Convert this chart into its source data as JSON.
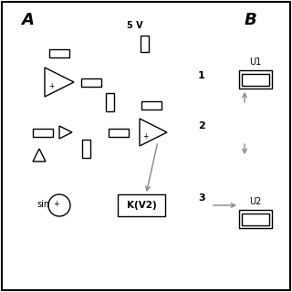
{
  "bg_color": "#ffffff",
  "lc": "#000000",
  "gray": "#888888",
  "lw": 1.0,
  "label_A": "A",
  "label_B": "B",
  "label_1": "1",
  "label_2": "2",
  "label_3": "3",
  "label_U1": "U1",
  "label_U2": "U2",
  "label_5V": "5 V",
  "label_sin": "sin",
  "label_KV2": "K(V2)"
}
